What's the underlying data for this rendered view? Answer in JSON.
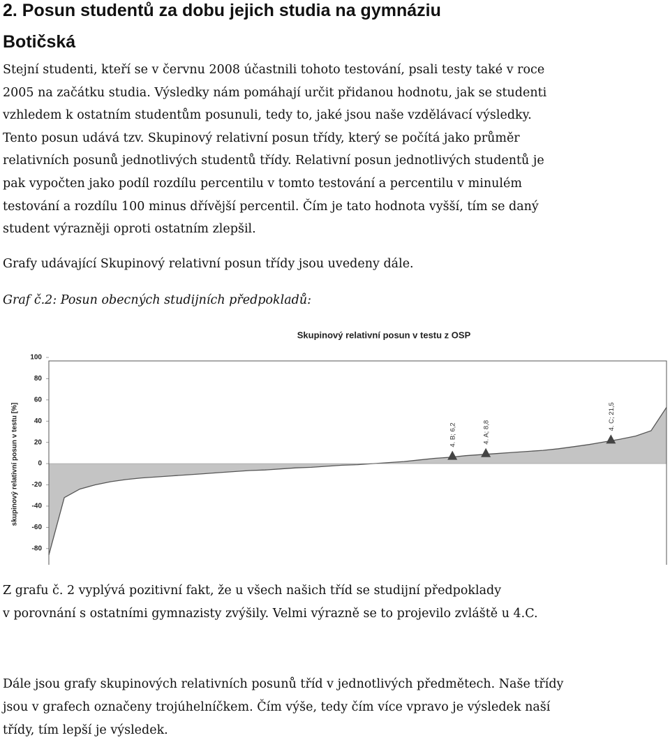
{
  "heading": [
    "2. Posun studentů za dobu jejich studia na gymnáziu",
    "Botičská"
  ],
  "paragraphs": [
    [
      "Stejní studenti, kteří se v červnu 2008 účastnili tohoto testování, psali testy také v roce",
      "2005 na začátku studia. Výsledky nám pomáhají určit přidanou hodnotu, jak se studenti",
      "vzhledem k ostatním studentům posunuli, tedy to, jaké jsou naše vzdělávací výsledky.",
      "Tento posun udává tzv. Skupinový relativní posun třídy, který se počítá jako průměr",
      "relativních posunů jednotlivých studentů třídy. Relativní posun jednotlivých studentů je",
      "pak vypočten jako podíl rozdílu percentilu v tomto testování a percentilu v minulém",
      "testování a rozdílu 100 minus dřívější percentil. Čím je tato hodnota vyšší, tím se daný",
      "student výrazněji oproti ostatním zlepšil."
    ],
    [
      "Grafy udávající Skupinový relativní posun třídy jsou uvedeny dále."
    ]
  ],
  "caption": "Graf č.2: Posun obecných studijních předpokladů:",
  "chart_data": {
    "type": "area",
    "title": "Skupinový relativní posun v testu z OSP",
    "y_label": "skupinový relativní posun v testu [%]",
    "values": [
      -86,
      -32,
      -24,
      -20,
      -17,
      -15,
      -13.5,
      -12.5,
      -11.5,
      -10.5,
      -9.5,
      -8.5,
      -7.5,
      -6.5,
      -6,
      -5,
      -4,
      -3.5,
      -2.5,
      -1.5,
      -1,
      0,
      1,
      2,
      3.5,
      5,
      6,
      7.5,
      8.5,
      9.5,
      10.5,
      11.5,
      12.5,
      14,
      16,
      18,
      20.5,
      23,
      26,
      31,
      53
    ],
    "color": "#555555",
    "fill_color": "#c4c4c4",
    "ylim": [
      -90,
      100
    ],
    "yticks": [
      -80,
      -60,
      -40,
      -20,
      0,
      20,
      40,
      60,
      80,
      100
    ],
    "markers": [
      {
        "label": "4. B; 6,2",
        "value": 6.2
      },
      {
        "label": "4. A; 8,8",
        "value": 8.8
      },
      {
        "label": "4. C; 21,5",
        "value": 21.5
      }
    ]
  },
  "conclusion": [
    [
      "Z grafu č. 2 vyplývá pozitivní fakt, že u všech našich tříd se studijní předpoklady",
      "v porovnání s ostatními gymnazisty zvýšily. Velmi výrazně se to projevilo zvláště u 4.C."
    ],
    [
      "Dále jsou grafy skupinových relativních posunů tříd v jednotlivých předmětech. Naše třídy",
      "jsou v grafech označeny trojúhelníčkem. Čím výše, tedy čím více vpravo je výsledek naší",
      "třídy, tím lepší je výsledek."
    ]
  ]
}
